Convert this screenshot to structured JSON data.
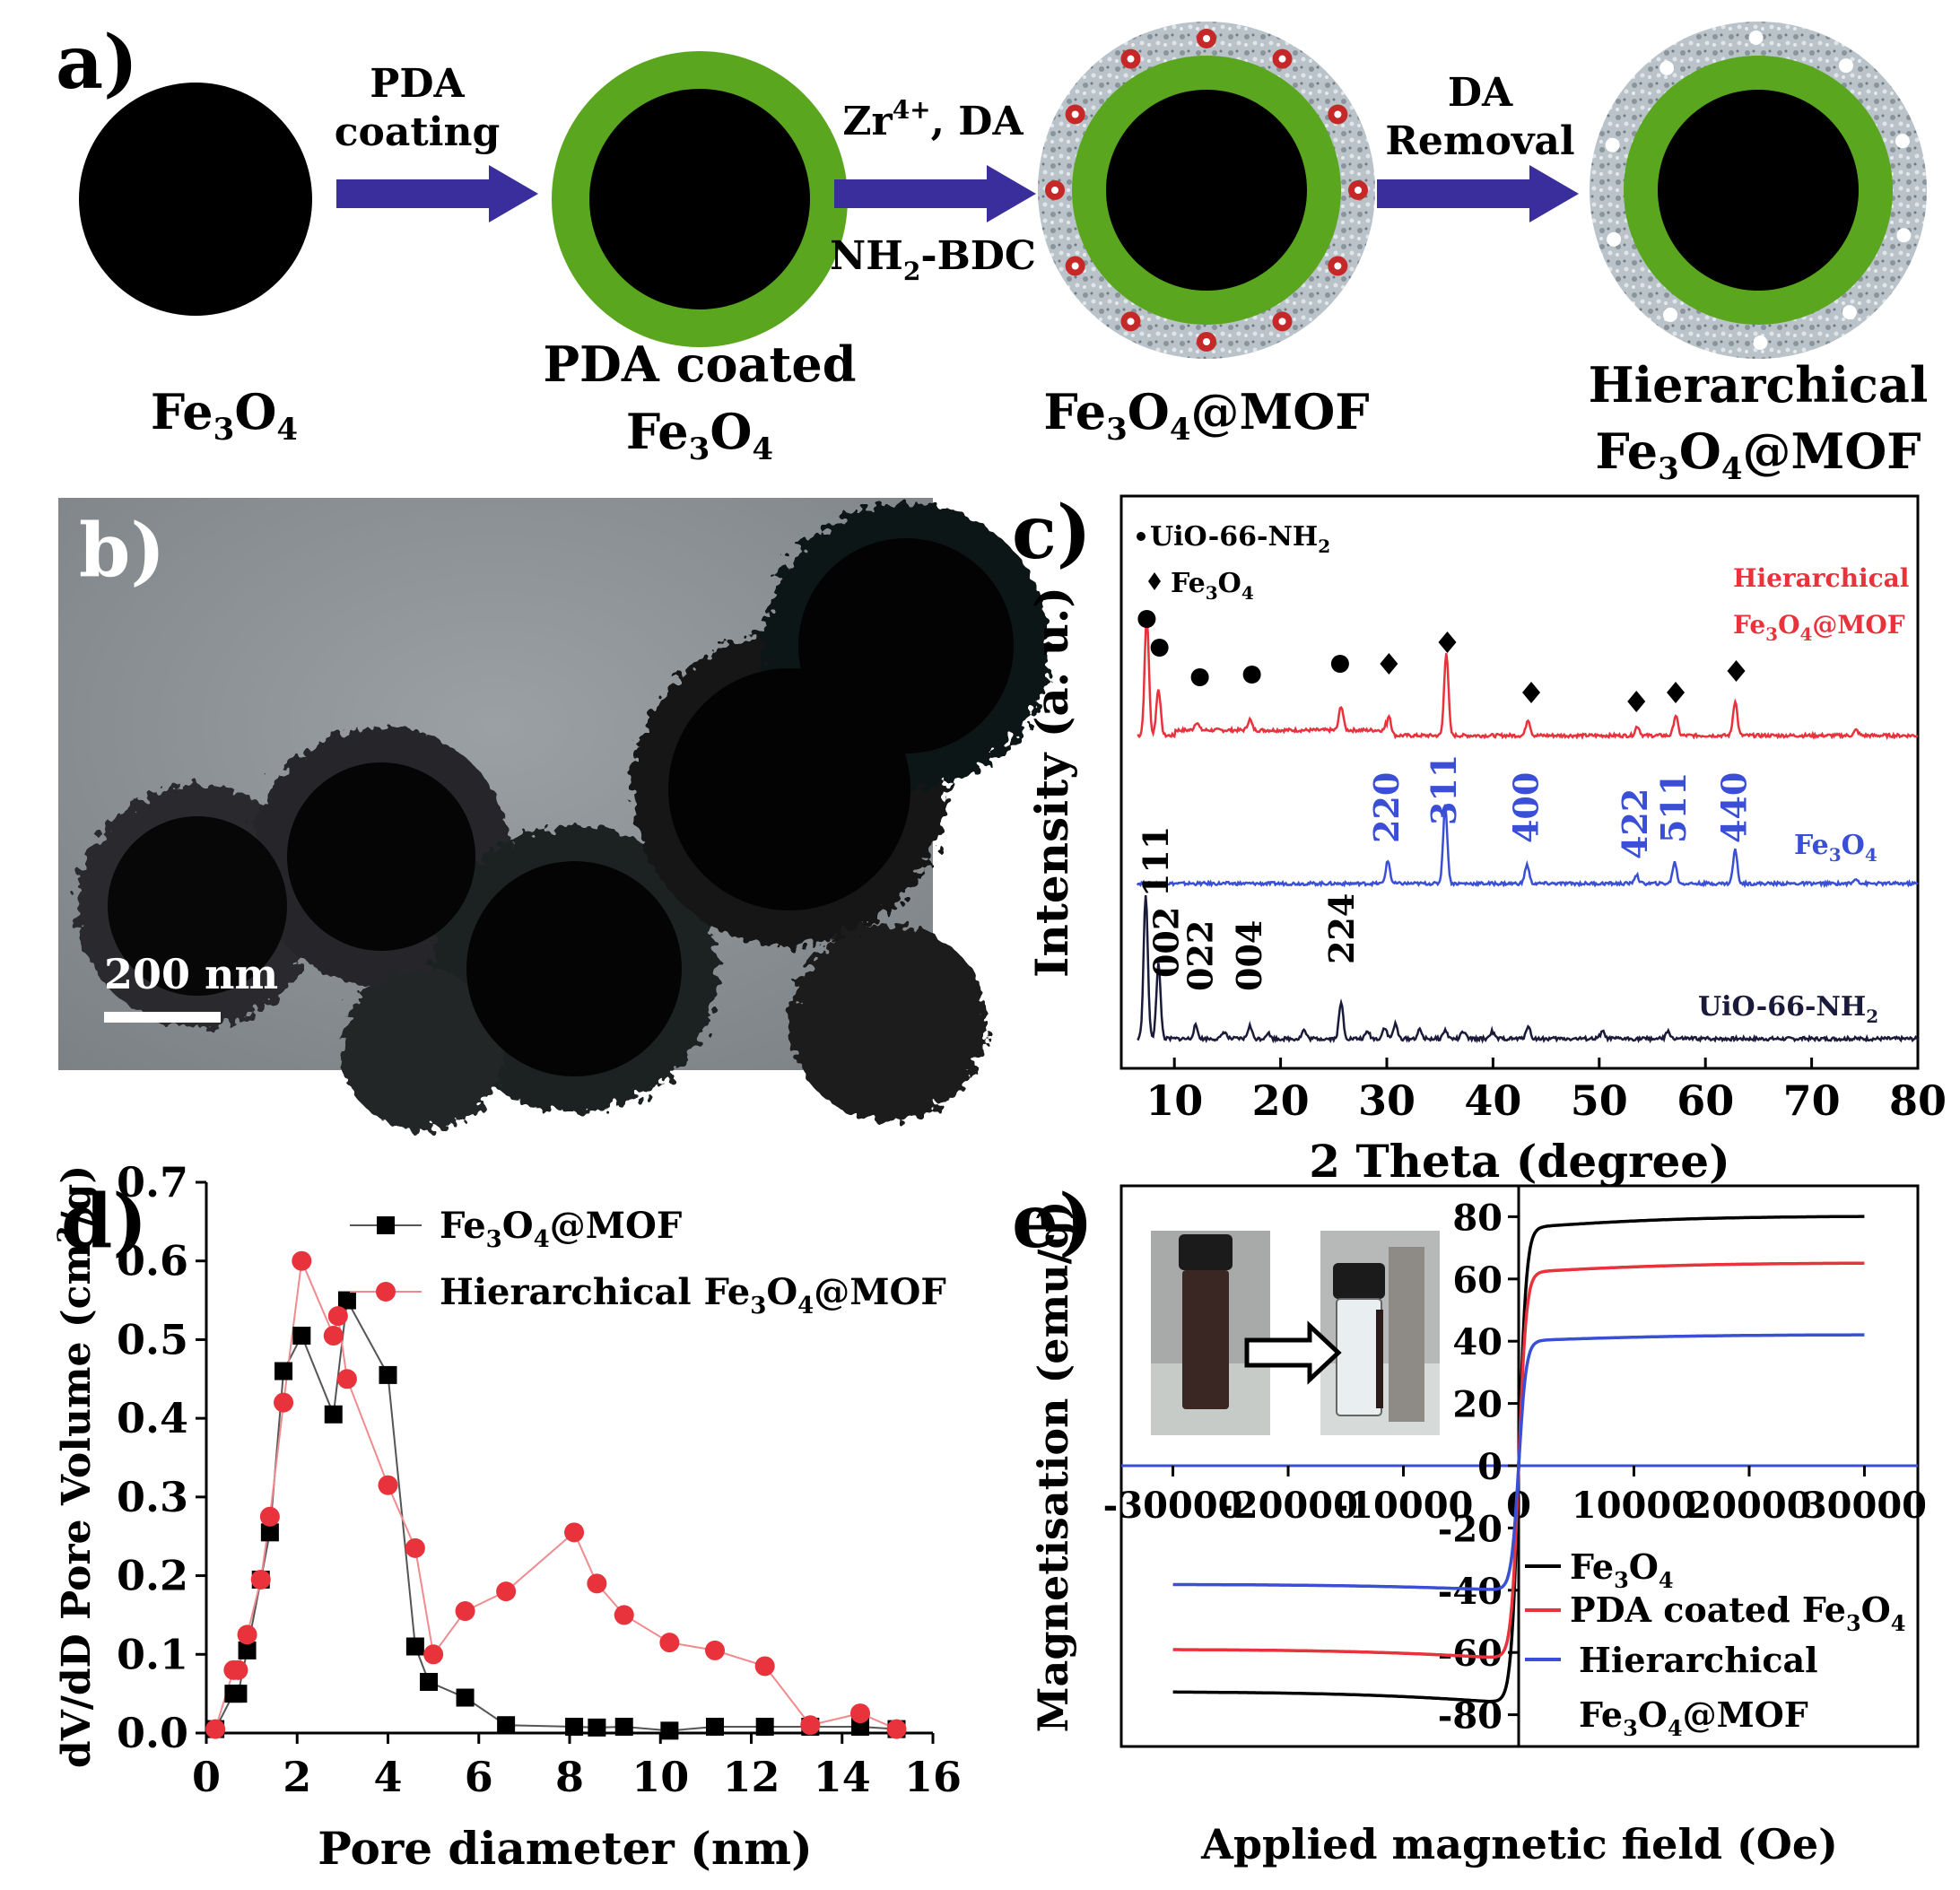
{
  "panel_a": {
    "label": "a)",
    "step1": {
      "line1": "PDA",
      "line2": "coating"
    },
    "step2": {
      "top_main": "Zr",
      "top_sup": "4+",
      "top_tail": ", DA",
      "bottom_main": "NH",
      "bottom_sub": "2",
      "bottom_tail": "-BDC"
    },
    "step3": {
      "line1": "DA",
      "line2": "Removal"
    },
    "cap1": {
      "a": "Fe",
      "s1": "3",
      "b": "O",
      "s2": "4"
    },
    "cap2": {
      "line1": "PDA coated",
      "a": "Fe",
      "s1": "3",
      "b": "O",
      "s2": "4"
    },
    "cap3": {
      "a": "Fe",
      "s1": "3",
      "b": "O",
      "s2": "4",
      "c": "@MOF"
    },
    "cap4": {
      "line1": "Hierarchical",
      "a": "Fe",
      "s1": "3",
      "b": "O",
      "s2": "4",
      "c": "@MOF"
    },
    "colors": {
      "core": "#000000",
      "pda": "#5aa61e",
      "arrow": "#3a2d9c",
      "dot": "#c62828",
      "mof": "#b8c2c8"
    }
  },
  "panel_b": {
    "label": "b)",
    "scale_bar": "200 nm"
  },
  "chart_data": [
    {
      "panel": "c)",
      "type": "line",
      "xlabel": "2 Theta (degree)",
      "ylabel": "Intensity (a. u.)",
      "xlim": [
        5,
        80
      ],
      "xticks": [
        10,
        20,
        30,
        40,
        50,
        60,
        70,
        80
      ],
      "legend": {
        "dot_label": "UiO-66-NH",
        "dot_sub": "2",
        "diamond_label": "Fe",
        "diamond_s1": "3",
        "diamond_b": "O",
        "diamond_s2": "4"
      },
      "series": [
        {
          "name_line1": "Hierarchical",
          "name_a": "Fe",
          "name_s1": "3",
          "name_b": "O",
          "name_s2": "4",
          "name_c": "@MOF",
          "color": "#e8323c",
          "baseline": 0.0,
          "peaks": [
            [
              7.4,
              0.88
            ],
            [
              8.5,
              0.35
            ],
            [
              12.1,
              0.06
            ],
            [
              17.1,
              0.08
            ],
            [
              25.7,
              0.18
            ],
            [
              30.2,
              0.15
            ],
            [
              35.6,
              0.62
            ],
            [
              43.3,
              0.12
            ],
            [
              53.6,
              0.07
            ],
            [
              57.2,
              0.15
            ],
            [
              62.8,
              0.26
            ],
            [
              74.2,
              0.04
            ]
          ]
        },
        {
          "name_a": "Fe",
          "name_s1": "3",
          "name_b": "O",
          "name_s2": "4",
          "color": "#3a4fd6",
          "baseline": 0.0,
          "peaks": [
            [
              30.1,
              0.18
            ],
            [
              35.5,
              0.62
            ],
            [
              43.2,
              0.15
            ],
            [
              53.5,
              0.07
            ],
            [
              57.1,
              0.17
            ],
            [
              62.8,
              0.27
            ],
            [
              74.2,
              0.04
            ]
          ]
        },
        {
          "name_a": "UiO-66-NH",
          "name_s1": "2",
          "color": "#1a1a3a",
          "baseline": 0.0,
          "peaks": [
            [
              7.3,
              1.0
            ],
            [
              8.5,
              0.52
            ],
            [
              12.0,
              0.09
            ],
            [
              14.7,
              0.05
            ],
            [
              17.1,
              0.09
            ],
            [
              18.8,
              0.04
            ],
            [
              22.2,
              0.06
            ],
            [
              25.7,
              0.25
            ],
            [
              28.2,
              0.05
            ],
            [
              29.8,
              0.08
            ],
            [
              30.8,
              0.1
            ],
            [
              33.1,
              0.06
            ],
            [
              35.5,
              0.06
            ],
            [
              37.2,
              0.05
            ],
            [
              39.9,
              0.05
            ],
            [
              43.3,
              0.09
            ],
            [
              50.3,
              0.05
            ],
            [
              56.5,
              0.05
            ]
          ]
        }
      ],
      "annotations_blue": [
        "220",
        "311",
        "400",
        "422",
        "511",
        "440"
      ],
      "annotations_black": [
        "111",
        "002",
        "022",
        "004",
        "224"
      ]
    },
    {
      "panel": "d)",
      "type": "scatter",
      "xlabel": "Pore diameter (nm)",
      "ylabel_main": "dV/dD Pore Volume (cm",
      "ylabel_sup": "3",
      "ylabel_tail": "/g)",
      "xlim": [
        0,
        16
      ],
      "ylim": [
        0,
        0.7
      ],
      "xticks": [
        0,
        2,
        4,
        6,
        8,
        10,
        12,
        14,
        16
      ],
      "yticks": [
        "0.0",
        "0.1",
        "0.2",
        "0.3",
        "0.4",
        "0.5",
        "0.6",
        "0.7"
      ],
      "series": [
        {
          "name_a": "Fe",
          "name_s1": "3",
          "name_b": "O",
          "name_s2": "4",
          "name_c": "@MOF",
          "color": "#000000",
          "marker": "square",
          "x": [
            0.2,
            0.6,
            0.7,
            0.9,
            1.2,
            1.4,
            1.7,
            2.1,
            2.8,
            3.1,
            4.0,
            4.6,
            4.9,
            5.7,
            6.6,
            8.1,
            8.6,
            9.2,
            10.2,
            11.2,
            12.3,
            13.3,
            14.4,
            15.2
          ],
          "y": [
            0.005,
            0.05,
            0.05,
            0.105,
            0.195,
            0.255,
            0.46,
            0.505,
            0.405,
            0.55,
            0.455,
            0.11,
            0.065,
            0.045,
            0.01,
            0.008,
            0.007,
            0.008,
            0.003,
            0.008,
            0.008,
            0.008,
            0.008,
            0.005
          ]
        },
        {
          "name_line1": "Hierarchical",
          "name_a": "Fe",
          "name_s1": "3",
          "name_b": "O",
          "name_s2": "4",
          "name_c": "@MOF",
          "color": "#e8323c",
          "marker": "circle",
          "x": [
            0.2,
            0.6,
            0.7,
            0.9,
            1.2,
            1.4,
            1.7,
            2.1,
            2.8,
            2.9,
            3.1,
            4.0,
            4.6,
            5.0,
            5.7,
            6.6,
            8.1,
            8.6,
            9.2,
            10.2,
            11.2,
            12.3,
            13.3,
            14.4,
            15.2
          ],
          "y": [
            0.005,
            0.08,
            0.08,
            0.125,
            0.195,
            0.275,
            0.42,
            0.6,
            0.505,
            0.53,
            0.45,
            0.315,
            0.235,
            0.1,
            0.155,
            0.18,
            0.255,
            0.19,
            0.15,
            0.115,
            0.105,
            0.085,
            0.01,
            0.025,
            0.005
          ]
        }
      ]
    },
    {
      "panel": "e)",
      "type": "line",
      "xlabel": "Applied magnetic field (Oe)",
      "ylabel": "Magnetisation (emu/g)",
      "xlim": [
        -36000,
        36000
      ],
      "ylim": [
        -90,
        90
      ],
      "xticks": [
        "-30000",
        "-20000",
        "-10000",
        "0",
        "10000",
        "20000",
        "30000"
      ],
      "yticks": [
        "80",
        "60",
        "40",
        "20",
        "0",
        "-20",
        "-40",
        "-60",
        "-80"
      ],
      "series": [
        {
          "name_a": "Fe",
          "name_s1": "3",
          "name_b": "O",
          "name_s2": "4",
          "color": "#000000",
          "ms": 80
        },
        {
          "name_line1": "PDA coated ",
          "name_a": "Fe",
          "name_s1": "3",
          "name_b": "O",
          "name_s2": "4",
          "color": "#e8323c",
          "ms": 65
        },
        {
          "name_line1": "Hierarchical",
          "name_a": "Fe",
          "name_s1": "3",
          "name_b": "O",
          "name_s2": "4",
          "name_c": "@MOF",
          "color": "#3a4fd6",
          "ms": 42
        }
      ]
    }
  ]
}
